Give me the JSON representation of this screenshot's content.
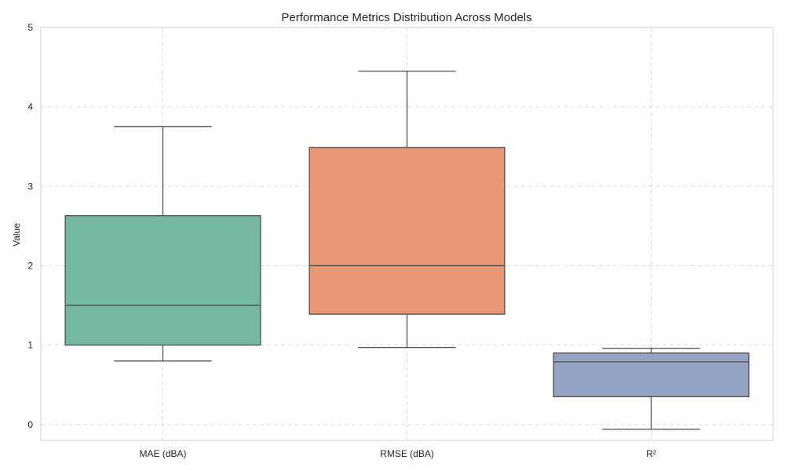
{
  "chart_data": {
    "type": "box",
    "title": "Performance Metrics Distribution Across Models",
    "xlabel": "",
    "ylabel": "Value",
    "ylim": [
      -0.2,
      5.0
    ],
    "yticks": [
      0,
      1,
      2,
      3,
      4,
      5
    ],
    "grid": true,
    "categories": [
      "MAE (dBA)",
      "RMSE (dBA)",
      "R²"
    ],
    "boxes": [
      {
        "category": "MAE (dBA)",
        "whisker_low": 0.8,
        "q1": 1.0,
        "median": 1.5,
        "q3": 2.63,
        "whisker_high": 3.75,
        "color": "#74b8a0"
      },
      {
        "category": "RMSE (dBA)",
        "whisker_low": 0.97,
        "q1": 1.39,
        "median": 2.0,
        "q3": 3.49,
        "whisker_high": 4.45,
        "color": "#e99877"
      },
      {
        "category": "R²",
        "whisker_low": -0.06,
        "q1": 0.35,
        "median": 0.79,
        "q3": 0.9,
        "whisker_high": 0.96,
        "color": "#94a3c3"
      }
    ],
    "line_color": "#4d4d4d",
    "grid_color": "#dcdcdc",
    "frame_color": "#cfcfcf"
  }
}
